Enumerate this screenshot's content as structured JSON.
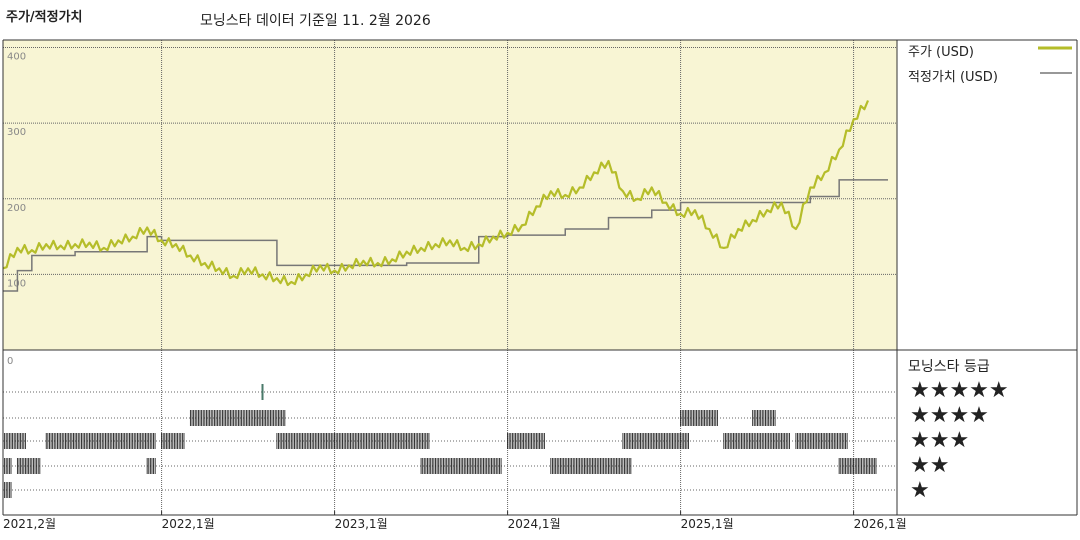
{
  "header": {
    "title": "주가/적정가치",
    "subtitle": "모닝스타 데이터 기준일 11. 2월 2026"
  },
  "legend": {
    "price_label": "주가 (USD)",
    "fair_label": "적정가치 (USD)",
    "price_color": "#b5bd2a",
    "fair_color": "#777777"
  },
  "rating": {
    "title": "모닝스타 등급",
    "rows": [
      "★★★★★",
      "★★★★",
      "★★★",
      "★★",
      "★"
    ]
  },
  "chart_data": {
    "type": "line",
    "xlabel": "",
    "ylabel": "",
    "ylim": [
      0,
      410
    ],
    "y_ticks": [
      "400",
      "300",
      "200",
      "100",
      "0"
    ],
    "x_ticks": [
      "2021,2월",
      "2022,1월",
      "2023,1월",
      "2024,1월",
      "2025,1월",
      "2026,1월"
    ],
    "grid": true,
    "legend_position": "right",
    "plot_background": "#f8f5d4",
    "series": [
      {
        "name": "주가 (USD)",
        "points": [
          [
            "2021-02",
            108
          ],
          [
            "2021-03",
            135
          ],
          [
            "2021-04",
            132
          ],
          [
            "2021-05",
            140
          ],
          [
            "2021-06",
            138
          ],
          [
            "2021-07",
            140
          ],
          [
            "2021-08",
            142
          ],
          [
            "2021-09",
            135
          ],
          [
            "2021-10",
            145
          ],
          [
            "2021-11",
            150
          ],
          [
            "2021-12",
            162
          ],
          [
            "2022-01",
            145
          ],
          [
            "2022-02",
            140
          ],
          [
            "2022-03",
            125
          ],
          [
            "2022-04",
            115
          ],
          [
            "2022-05",
            108
          ],
          [
            "2022-06",
            98
          ],
          [
            "2022-07",
            108
          ],
          [
            "2022-08",
            100
          ],
          [
            "2022-09",
            95
          ],
          [
            "2022-10",
            90
          ],
          [
            "2022-11",
            100
          ],
          [
            "2022-12",
            112
          ],
          [
            "2023-01",
            105
          ],
          [
            "2023-02",
            112
          ],
          [
            "2023-03",
            118
          ],
          [
            "2023-04",
            115
          ],
          [
            "2023-05",
            120
          ],
          [
            "2023-06",
            130
          ],
          [
            "2023-07",
            135
          ],
          [
            "2023-08",
            140
          ],
          [
            "2023-09",
            145
          ],
          [
            "2023-10",
            135
          ],
          [
            "2023-11",
            140
          ],
          [
            "2023-12",
            150
          ],
          [
            "2024-01",
            155
          ],
          [
            "2024-02",
            165
          ],
          [
            "2024-03",
            190
          ],
          [
            "2024-04",
            210
          ],
          [
            "2024-05",
            205
          ],
          [
            "2024-06",
            215
          ],
          [
            "2024-07",
            235
          ],
          [
            "2024-08",
            250
          ],
          [
            "2024-09",
            210
          ],
          [
            "2024-10",
            200
          ],
          [
            "2024-11",
            215
          ],
          [
            "2024-12",
            195
          ],
          [
            "2025-01",
            180
          ],
          [
            "2025-02",
            185
          ],
          [
            "2025-03",
            160
          ],
          [
            "2025-04",
            135
          ],
          [
            "2025-05",
            160
          ],
          [
            "2025-06",
            172
          ],
          [
            "2025-07",
            185
          ],
          [
            "2025-08",
            195
          ],
          [
            "2025-09",
            160
          ],
          [
            "2025-10",
            215
          ],
          [
            "2025-11",
            235
          ],
          [
            "2025-12",
            265
          ],
          [
            "2026-01",
            305
          ],
          [
            "2026-02",
            330
          ]
        ]
      },
      {
        "name": "적정가치 (USD)",
        "step": true,
        "points": [
          [
            "2021-02",
            78
          ],
          [
            "2021-03",
            105
          ],
          [
            "2021-04",
            125
          ],
          [
            "2021-07",
            130
          ],
          [
            "2021-12",
            150
          ],
          [
            "2022-01",
            145
          ],
          [
            "2022-09",
            112
          ],
          [
            "2023-06",
            115
          ],
          [
            "2023-11",
            150
          ],
          [
            "2024-01",
            152
          ],
          [
            "2024-05",
            160
          ],
          [
            "2024-08",
            175
          ],
          [
            "2024-11",
            185
          ],
          [
            "2025-01",
            195
          ],
          [
            "2025-10",
            203
          ],
          [
            "2025-12",
            225
          ],
          [
            "2026-02",
            225
          ]
        ]
      }
    ],
    "rating_history": [
      {
        "stars": 5,
        "periods": [
          [
            "2022-08",
            "2022-08"
          ]
        ]
      },
      {
        "stars": 4,
        "periods": [
          [
            "2022-03",
            "2022-09"
          ],
          [
            "2025-01",
            "2025-03"
          ],
          [
            "2025-06",
            "2025-07"
          ]
        ]
      },
      {
        "stars": 3,
        "periods": [
          [
            "2021-02",
            "2021-03"
          ],
          [
            "2021-05",
            "2021-12"
          ],
          [
            "2022-01",
            "2022-02"
          ],
          [
            "2022-09",
            "2023-07"
          ],
          [
            "2024-01",
            "2024-03"
          ],
          [
            "2024-09",
            "2025-01"
          ],
          [
            "2025-04",
            "2025-08"
          ],
          [
            "2025-09",
            "2025-12"
          ]
        ]
      },
      {
        "stars": 2,
        "periods": [
          [
            "2021-02",
            "2021-02"
          ],
          [
            "2021-03",
            "2021-04"
          ],
          [
            "2021-12",
            "2021-12"
          ],
          [
            "2023-07",
            "2023-12"
          ],
          [
            "2024-04",
            "2024-09"
          ],
          [
            "2025-12",
            "2026-02"
          ]
        ]
      },
      {
        "stars": 1,
        "periods": [
          [
            "2021-02",
            "2021-02"
          ]
        ]
      }
    ]
  }
}
